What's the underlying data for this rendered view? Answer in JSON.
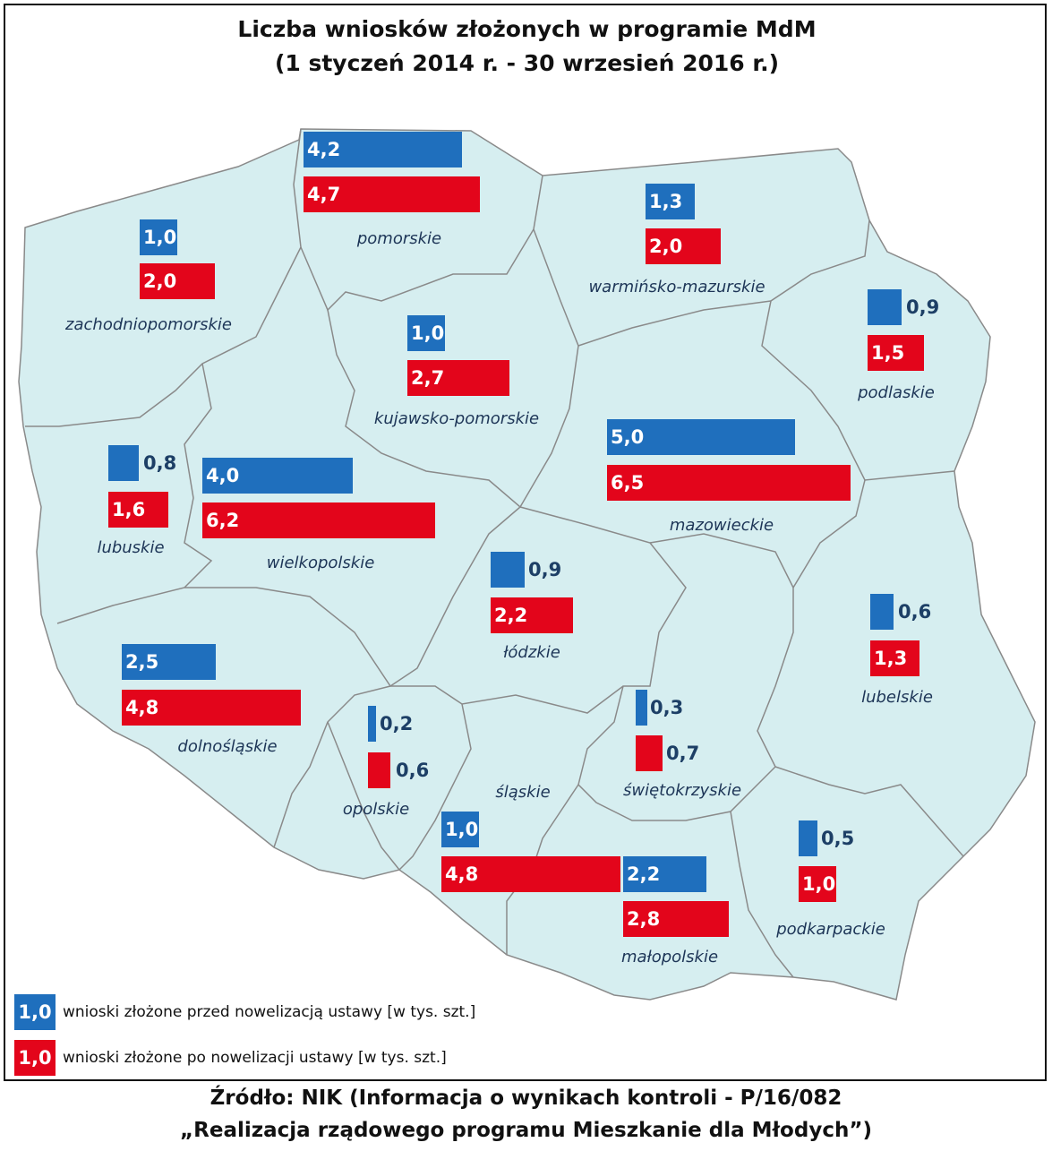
{
  "title": {
    "line1": "Liczba wniosków złożonych w programie MdM",
    "line2": "(1 styczeń 2014 r. - 30 wrzesień 2016 r.)"
  },
  "colors": {
    "before": "#1f6fbd",
    "after": "#e3051b",
    "land": "#d6eef0",
    "border": "#8a8a8a"
  },
  "regions": [
    {
      "id": "zachodniopomorskie",
      "name": "zachodniopomorskie",
      "before": "1,0",
      "after": "2,0"
    },
    {
      "id": "pomorskie",
      "name": "pomorskie",
      "before": "4,2",
      "after": "4,7"
    },
    {
      "id": "warminsko-mazurskie",
      "name": "warmińsko-mazurskie",
      "before": "1,3",
      "after": "2,0"
    },
    {
      "id": "podlaskie",
      "name": "podlaskie",
      "before": "0,9",
      "after": "1,5"
    },
    {
      "id": "kujawsko-pomorskie",
      "name": "kujawsko-pomorskie",
      "before": "1,0",
      "after": "2,7"
    },
    {
      "id": "lubuskie",
      "name": "lubuskie",
      "before": "0,8",
      "after": "1,6"
    },
    {
      "id": "wielkopolskie",
      "name": "wielkopolskie",
      "before": "4,0",
      "after": "6,2"
    },
    {
      "id": "mazowieckie",
      "name": "mazowieckie",
      "before": "5,0",
      "after": "6,5"
    },
    {
      "id": "lodzkie",
      "name": "łódzkie",
      "before": "0,9",
      "after": "2,2"
    },
    {
      "id": "lubelskie",
      "name": "lubelskie",
      "before": "0,6",
      "after": "1,3"
    },
    {
      "id": "dolnoslaskie",
      "name": "dolnośląskie",
      "before": "2,5",
      "after": "4,8"
    },
    {
      "id": "opolskie",
      "name": "opolskie",
      "before": "0,2",
      "after": "0,6"
    },
    {
      "id": "slaskie",
      "name": "śląskie",
      "before": "1,0",
      "after": "4,8"
    },
    {
      "id": "swietokrzyskie",
      "name": "świętokrzyskie",
      "before": "0,3",
      "after": "0,7"
    },
    {
      "id": "malopolskie",
      "name": "małopolskie",
      "before": "2,2",
      "after": "2,8"
    },
    {
      "id": "podkarpackie",
      "name": "podkarpackie",
      "before": "0,5",
      "after": "1,0"
    }
  ],
  "legend": {
    "before_value": "1,0",
    "before_label": "wnioski złożone przed nowelizacją ustawy [w tys. szt.]",
    "after_value": "1,0",
    "after_label": "wnioski złożone po nowelizacji ustawy [w tys. szt.]"
  },
  "source": {
    "line1": "Źródło: NIK (Informacja o wynikach kontroli - P/16/082",
    "line2": "„Realizacja rządowego programu Mieszkanie dla Młodych”)"
  }
}
